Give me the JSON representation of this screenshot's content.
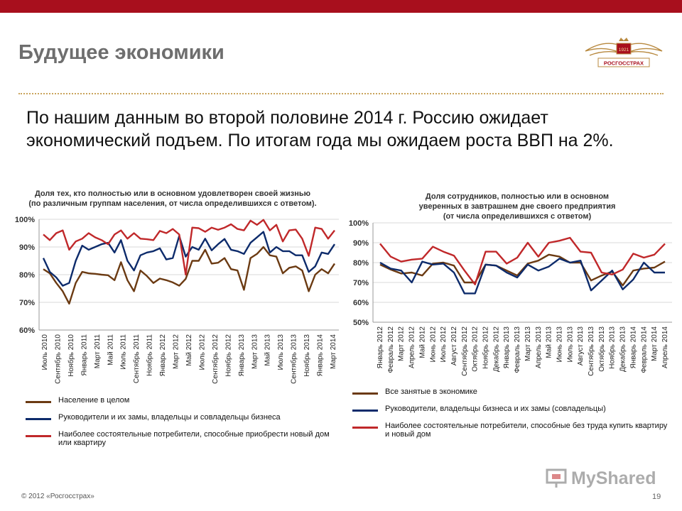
{
  "slide": {
    "title": "Будущее экономики",
    "lead": "По нашим данным во второй половине 2014 г. Россию ожидает экономический подъем. По итогам года мы ожидаем роста ВВП на 2%.",
    "logo_year": "1921",
    "logo_text": "РОСГОССТРАХ",
    "footer_left": "© 2012 «Росгосстрах»",
    "page_number": "19",
    "watermark": "MyShared",
    "colors": {
      "topbar": "#a80f1d",
      "brown": "#6b3a12",
      "navy": "#0d2b6b",
      "red": "#c0282a",
      "grid": "#d9d9d9"
    }
  },
  "chart_data": [
    {
      "type": "line",
      "title": "Доля тех, кто полностью или в основном удовлетворен своей жизнью (по различным группам населения, от числа определившихся с ответом).",
      "title_lines": [
        "Доля тех, кто полностью или в основном удовлетворен своей жизнью",
        "(по различным группам населения, от числа определившихся с ответом)."
      ],
      "ylim": [
        60,
        100
      ],
      "yticks": [
        "60%",
        "70%",
        "80%",
        "90%",
        "100%"
      ],
      "grid": true,
      "x_labels": [
        "Июль 2010",
        "Сентябрь 2010",
        "Ноябрь 2010",
        "Январь 2011",
        "Март 2011",
        "Май 2011",
        "Июль 2011",
        "Сентябрь 2011",
        "Ноябрь 2011",
        "Январь 2012",
        "Март 2012",
        "Май 2012",
        "Июль 2012",
        "Сентябрь 2012",
        "Ноябрь 2012",
        "Январь 2013",
        "Март 2013",
        "Май 2013",
        "Июль 2013",
        "Сентябрь 2013",
        "Ноябрь 2013",
        "Январь 2014",
        "Март 2014"
      ],
      "series": [
        {
          "name": "Население в целом",
          "color": "#6b3a12",
          "values": [
            82,
            80.5,
            77,
            74,
            69.5,
            77,
            81,
            80.5,
            80.3,
            80,
            79.8,
            78,
            84.5,
            78,
            74,
            81.5,
            79.5,
            77,
            78.6,
            78,
            77.2,
            76,
            78.5,
            85,
            85,
            89,
            84,
            84.3,
            86,
            82,
            81.5,
            74.5,
            86,
            87.5,
            90,
            87,
            86.5,
            80.5,
            82.5,
            83,
            81.5,
            74,
            80,
            82,
            80.5,
            84
          ]
        },
        {
          "name": "Руководители и их замы, владельцы и совладельцы бизнеса",
          "color": "#0d2b6b",
          "values": [
            86,
            81,
            79,
            76,
            77,
            85,
            90.5,
            89,
            90,
            91,
            91.5,
            88,
            92.5,
            85,
            81.5,
            87,
            88,
            88.5,
            89.5,
            85.5,
            86,
            94,
            86.5,
            90,
            89,
            93,
            88.8,
            91,
            92.9,
            89,
            88.5,
            87.5,
            91.5,
            93.5,
            95.5,
            88,
            90,
            88.5,
            88.5,
            87,
            87,
            81,
            83,
            88,
            87.5,
            91
          ]
        },
        {
          "name": "Наиболее состоятельные потребители, способные приобрести новый дом или квартиру",
          "color": "#c0282a",
          "values": [
            94.5,
            92.5,
            95,
            96,
            89,
            92,
            93,
            95,
            93.5,
            92.5,
            91,
            94.5,
            96,
            93,
            95,
            93,
            92.8,
            92.5,
            95.8,
            95,
            96.5,
            94.5,
            80,
            97,
            96.8,
            95.5,
            97,
            96.2,
            97,
            98.2,
            96.5,
            96,
            99.5,
            98,
            99.8,
            96,
            98,
            92,
            96,
            96.3,
            93,
            86.8,
            97,
            96.5,
            93,
            96
          ]
        }
      ],
      "legend": [
        "Население в целом",
        "Руководители и их замы, владельцы и совладельцы бизнеса",
        "Наиболее состоятельные потребители, способные приобрести новый дом или квартиру"
      ],
      "legend_position": "bottom"
    },
    {
      "type": "line",
      "title": "Доля сотрудников, полностью или в основном уверенных в завтрашнем дне своего предприятия (от числа определившихся с ответом)",
      "title_lines": [
        "Доля сотрудников, полностью или в основном",
        "уверенных в завтрашнем дне своего предприятия",
        "(от числа определившихся с ответом)"
      ],
      "ylim": [
        50,
        100
      ],
      "yticks": [
        "50%",
        "60%",
        "70%",
        "80%",
        "90%",
        "100%"
      ],
      "grid": true,
      "categories": [
        "Январь 2012",
        "Февраль 2012",
        "Март 2012",
        "Апрель 2012",
        "Май 2012",
        "Июнь 2012",
        "Июль 2012",
        "Август 2012",
        "Сентябрь 2012",
        "Октябрь 2012",
        "Ноябрь 2012",
        "Декабрь 2012",
        "Январь 2013",
        "Февраль 2013",
        "Март 2013",
        "Апрель 2013",
        "Май 2013",
        "Июнь 2013",
        "Июль 2013",
        "Август 2013",
        "Сентябрь 2013",
        "Октябрь 2013",
        "Ноябрь 2013",
        "Декабрь 2013",
        "Январь 2014",
        "Февраль 2014",
        "Март 2014",
        "Апрель 2014"
      ],
      "series": [
        {
          "name": "Все занятые в экономике",
          "color": "#6b3a12",
          "values": [
            79,
            76.5,
            74.5,
            75,
            73.5,
            79.5,
            80,
            78.5,
            70,
            70,
            79,
            78.5,
            76,
            73.5,
            79.5,
            81,
            84,
            83,
            80,
            80,
            71,
            73.5,
            75.5,
            68.5,
            76,
            77,
            77.5,
            80.5
          ]
        },
        {
          "name": "Руководители, владельцы бизнеса и их замы (совладельцы)",
          "color": "#0d2b6b",
          "values": [
            80,
            77,
            76,
            70,
            80.5,
            79,
            79.5,
            75,
            64.5,
            64.5,
            79,
            78.5,
            75,
            72.5,
            79,
            76,
            78,
            82,
            80,
            81,
            66,
            71,
            76,
            66.5,
            71.5,
            80,
            75,
            75
          ]
        },
        {
          "name": "Наиболее состоятельные потребители, способные без труда купить квартиру и новый дом",
          "color": "#c0282a",
          "values": [
            89.5,
            83,
            80.5,
            81.5,
            82,
            88,
            85.5,
            83.5,
            76,
            69,
            85.5,
            85.5,
            79.5,
            82.5,
            90,
            83,
            90,
            91,
            92.5,
            85.5,
            85,
            75,
            74,
            76.5,
            84.5,
            82.5,
            84,
            89.5
          ]
        }
      ],
      "legend": [
        "Все занятые в экономике",
        "Руководители, владельцы бизнеса и их замы (совладельцы)",
        "Наиболее состоятельные потребители, способные без труда купить квартиру и новый дом"
      ],
      "legend_position": "bottom"
    }
  ]
}
